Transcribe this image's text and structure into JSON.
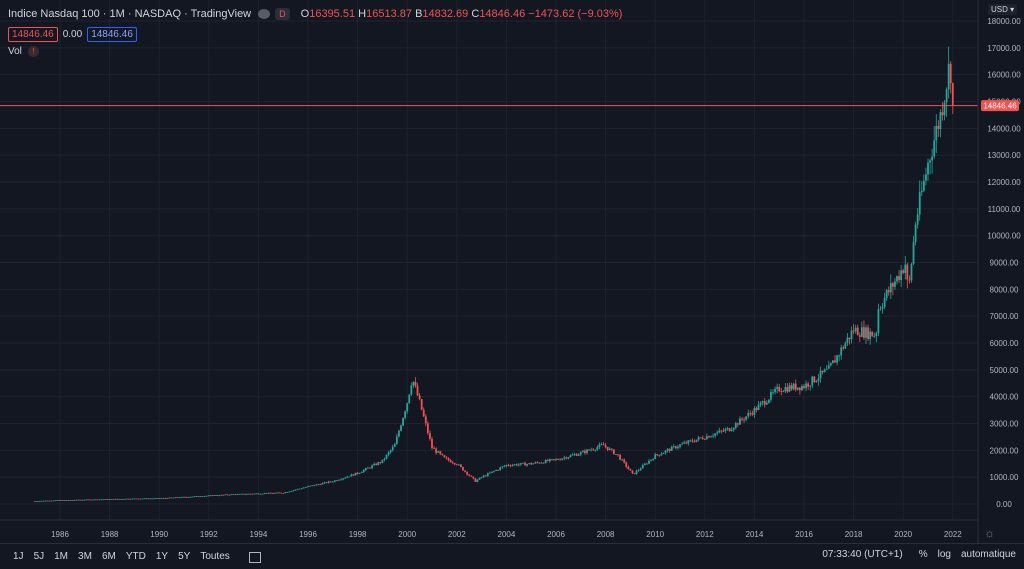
{
  "legend": {
    "symbol": "Indice Nasdaq 100 · 1M · NASDAQ · TradingView",
    "badge": "D",
    "open_label": "O",
    "open": "16395.51",
    "high_label": "H",
    "high": "16513.87",
    "low_label": "B",
    "low": "14832.69",
    "close_label": "C",
    "close": "14846.46",
    "change": "−1473.62 (−9.03%)",
    "price_box": "14846.46",
    "zero": "0.00",
    "price_box2": "14846.46",
    "vol_label": "Vol",
    "vol_badge": "!"
  },
  "axis": {
    "currency": "USD",
    "current_price": "14846.46"
  },
  "toolbar": {
    "periods": [
      "1J",
      "5J",
      "1M",
      "3M",
      "6M",
      "YTD",
      "1Y",
      "5Y",
      "Toutes"
    ],
    "time": "07:33:40 (UTC+1)",
    "pct": "%",
    "log": "log",
    "auto": "automatique"
  },
  "colors": {
    "background": "#131722",
    "up": "#26a69a",
    "down": "#ef5350",
    "grid": "#1f2330",
    "price_line": "#ef5350"
  },
  "chart_data": {
    "type": "candlestick",
    "interval": "1M",
    "ylim": [
      0,
      18000
    ],
    "y_ticks": [
      0,
      1000,
      2000,
      3000,
      4000,
      5000,
      6000,
      7000,
      8000,
      9000,
      10000,
      11000,
      12000,
      13000,
      14000,
      15000,
      16000,
      17000,
      18000
    ],
    "x_ticks": [
      "1986",
      "1988",
      "1990",
      "1992",
      "1994",
      "1996",
      "1998",
      "2000",
      "2002",
      "2004",
      "2006",
      "2008",
      "2010",
      "2012",
      "2014",
      "2016",
      "2018",
      "2020",
      "2022"
    ],
    "current_price": 14846.46,
    "approx_monthly_close": [
      [
        1985,
        110
      ],
      [
        1986,
        140
      ],
      [
        1987,
        160
      ],
      [
        1988,
        180
      ],
      [
        1989,
        200
      ],
      [
        1990,
        210
      ],
      [
        1991,
        260
      ],
      [
        1992,
        310
      ],
      [
        1993,
        360
      ],
      [
        1994,
        390
      ],
      [
        1995,
        420
      ],
      [
        1996,
        650
      ],
      [
        1997,
        850
      ],
      [
        1998,
        1150
      ],
      [
        1999,
        1600
      ],
      [
        1999.5,
        2200
      ],
      [
        2000,
        3800
      ],
      [
        2000.2,
        4700
      ],
      [
        2000.5,
        3800
      ],
      [
        2001,
        2100
      ],
      [
        2001.5,
        1700
      ],
      [
        2002,
        1500
      ],
      [
        2002.75,
        850
      ],
      [
        2003,
        1000
      ],
      [
        2004,
        1450
      ],
      [
        2005,
        1500
      ],
      [
        2006,
        1650
      ],
      [
        2007,
        1900
      ],
      [
        2007.9,
        2200
      ],
      [
        2008.5,
        1800
      ],
      [
        2009.1,
        1100
      ],
      [
        2010,
        1800
      ],
      [
        2011,
        2200
      ],
      [
        2012,
        2500
      ],
      [
        2013,
        2800
      ],
      [
        2014,
        3500
      ],
      [
        2015,
        4300
      ],
      [
        2016,
        4400
      ],
      [
        2017,
        5000
      ],
      [
        2018,
        6500
      ],
      [
        2018.9,
        6300
      ],
      [
        2019,
        7300
      ],
      [
        2019.8,
        8500
      ],
      [
        2020.1,
        9000
      ],
      [
        2020.2,
        7800
      ],
      [
        2020.5,
        10500
      ],
      [
        2021,
        12700
      ],
      [
        2021.5,
        14500
      ],
      [
        2021.9,
        16500
      ],
      [
        2022,
        14846.46
      ]
    ]
  }
}
